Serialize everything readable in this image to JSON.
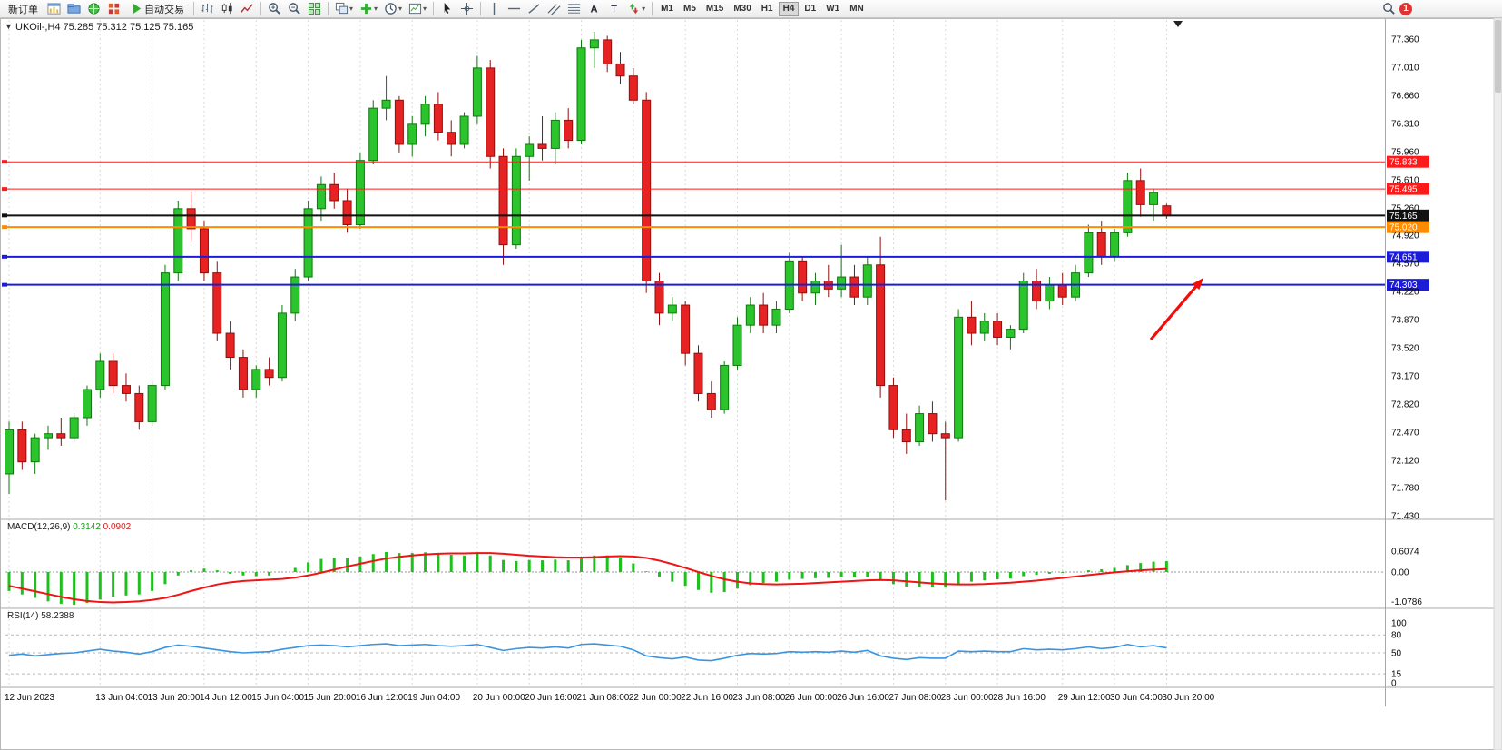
{
  "toolbar": {
    "new_order_label": "新订单",
    "autotrade_label": "自动交易",
    "left_icon_buttons": [
      {
        "name": "new-chart-button",
        "icon": "chart-window"
      },
      {
        "name": "profiles-button",
        "icon": "folder-blue"
      },
      {
        "name": "market-watch-button",
        "icon": "globe-green"
      },
      {
        "name": "terminal-button",
        "icon": "grid-red"
      }
    ],
    "chart_type_buttons": [
      {
        "name": "bar-chart-button",
        "icon": "bars"
      },
      {
        "name": "candlestick-chart-button",
        "icon": "candles"
      },
      {
        "name": "line-chart-button",
        "icon": "linechart"
      }
    ],
    "zoom_buttons": [
      {
        "name": "zoom-in-button",
        "icon": "zoom-in"
      },
      {
        "name": "zoom-out-button",
        "icon": "zoom-out"
      },
      {
        "name": "tile-windows-button",
        "icon": "tiles-green"
      }
    ],
    "window_buttons": [
      {
        "name": "arrange-windows-button",
        "icon": "cascade",
        "caret": true
      },
      {
        "name": "add-indicator-button",
        "icon": "plus-green",
        "caret": true
      },
      {
        "name": "period-menu-button",
        "icon": "clock",
        "caret": true
      },
      {
        "name": "template-button",
        "icon": "template",
        "caret": true
      }
    ],
    "cursor_buttons": [
      {
        "name": "cursor-button",
        "icon": "cursor"
      },
      {
        "name": "crosshair-button",
        "icon": "crosshair"
      }
    ],
    "object_buttons": [
      {
        "name": "vertical-line-button",
        "icon": "vline"
      },
      {
        "name": "horizontal-line-button",
        "icon": "hline"
      },
      {
        "name": "trendline-button",
        "icon": "trend"
      },
      {
        "name": "channel-button",
        "icon": "channel"
      },
      {
        "name": "fibonacci-button",
        "icon": "fibo"
      },
      {
        "name": "text-button",
        "icon": "textA"
      },
      {
        "name": "text-label-button",
        "icon": "textT"
      },
      {
        "name": "arrows-button",
        "icon": "arrows",
        "caret": true
      }
    ],
    "timeframes": [
      "M1",
      "M5",
      "M15",
      "M30",
      "H1",
      "H4",
      "D1",
      "W1",
      "MN"
    ],
    "active_timeframe": "H4",
    "notification_count": "1"
  },
  "chart": {
    "title": "UKOil-,H4 75.285 75.312 75.125 75.165",
    "symbol": "UKOil-",
    "period": "H4",
    "open": "75.285",
    "high": "75.312",
    "low": "75.125",
    "close": "75.165",
    "macd_name": "MACD(12,26,9)",
    "macd_main": "0.3142",
    "macd_signal": "0.0902",
    "rsi_name": "RSI(14)",
    "rsi_value": "58.2388"
  },
  "colors": {
    "bull_fill": "#2cc42c",
    "bull_stroke": "#0d7a0d",
    "bear_fill": "#e62222",
    "bear_stroke": "#8f0f0f",
    "macd_hist": "#1fbf1f",
    "macd_signal": "#f01414",
    "rsi_line": "#3b94e0",
    "grid": "#dadada",
    "axis_text": "#0a0a0a",
    "badge_text": "#ffffff",
    "separator": "#a8a8a8",
    "arrow": "#f20d0d",
    "hline_red": "#fe1a1a",
    "hline_orange": "#ff8c00",
    "hline_blue": "#1b1bd8",
    "hline_black": "#111111"
  },
  "chart_data": [
    {
      "type": "candlestick",
      "symbol": "UKOil-",
      "timeframe": "H4",
      "ylim": [
        71.43,
        77.36
      ],
      "y_ticks": [
        "77.360",
        "77.010",
        "76.660",
        "76.310",
        "75.960",
        "75.610",
        "75.260",
        "74.920",
        "74.570",
        "74.220",
        "73.870",
        "73.520",
        "73.170",
        "72.820",
        "72.470",
        "72.120",
        "71.780",
        "71.430"
      ],
      "x": [
        "12 Jun 00:00",
        "12 Jun 04:00",
        "12 Jun 08:00",
        "12 Jun 12:00",
        "12 Jun 16:00",
        "12 Jun 20:00",
        "13 Jun 00:00",
        "13 Jun 04:00",
        "13 Jun 08:00",
        "13 Jun 12:00",
        "13 Jun 16:00",
        "13 Jun 20:00",
        "14 Jun 00:00",
        "14 Jun 04:00",
        "14 Jun 08:00",
        "14 Jun 12:00",
        "14 Jun 16:00",
        "14 Jun 20:00",
        "15 Jun 00:00",
        "15 Jun 04:00",
        "15 Jun 08:00",
        "15 Jun 12:00",
        "15 Jun 16:00",
        "15 Jun 20:00",
        "16 Jun 00:00",
        "16 Jun 04:00",
        "16 Jun 08:00",
        "16 Jun 12:00",
        "16 Jun 16:00",
        "16 Jun 20:00",
        "19 Jun 00:00",
        "19 Jun 04:00",
        "19 Jun 08:00",
        "19 Jun 12:00",
        "19 Jun 16:00",
        "19 Jun 20:00",
        "20 Jun 00:00",
        "20 Jun 04:00",
        "20 Jun 08:00",
        "20 Jun 12:00",
        "20 Jun 16:00",
        "20 Jun 20:00",
        "21 Jun 00:00",
        "21 Jun 04:00",
        "21 Jun 08:00",
        "21 Jun 12:00",
        "21 Jun 16:00",
        "21 Jun 20:00",
        "22 Jun 00:00",
        "22 Jun 04:00",
        "22 Jun 08:00",
        "22 Jun 12:00",
        "22 Jun 16:00",
        "22 Jun 20:00",
        "23 Jun 00:00",
        "23 Jun 04:00",
        "23 Jun 08:00",
        "23 Jun 12:00",
        "23 Jun 16:00",
        "23 Jun 20:00",
        "26 Jun 00:00",
        "26 Jun 04:00",
        "26 Jun 08:00",
        "26 Jun 12:00",
        "26 Jun 16:00",
        "26 Jun 20:00",
        "27 Jun 00:00",
        "27 Jun 04:00",
        "27 Jun 08:00",
        "27 Jun 12:00",
        "27 Jun 16:00",
        "27 Jun 20:00",
        "28 Jun 00:00",
        "28 Jun 04:00",
        "28 Jun 08:00",
        "28 Jun 12:00",
        "28 Jun 16:00",
        "28 Jun 20:00",
        "29 Jun 00:00",
        "29 Jun 04:00",
        "29 Jun 08:00",
        "29 Jun 12:00",
        "29 Jun 16:00",
        "29 Jun 20:00",
        "30 Jun 00:00",
        "30 Jun 04:00",
        "30 Jun 08:00",
        "30 Jun 12:00",
        "30 Jun 16:00",
        "30 Jun 20:00"
      ],
      "open": [
        71.95,
        72.5,
        72.1,
        72.4,
        72.45,
        72.4,
        72.65,
        73.0,
        73.35,
        73.05,
        72.95,
        72.6,
        73.05,
        74.45,
        75.25,
        75.0,
        74.45,
        73.7,
        73.4,
        73.0,
        73.25,
        73.15,
        73.95,
        74.4,
        75.25,
        75.55,
        75.35,
        75.05,
        75.85,
        76.5,
        76.6,
        76.05,
        76.3,
        76.55,
        76.2,
        76.05,
        76.4,
        77.0,
        75.9,
        74.8,
        75.9,
        76.05,
        76.0,
        76.35,
        76.1,
        77.25,
        77.35,
        77.05,
        76.9,
        76.6,
        74.35,
        73.95,
        74.05,
        73.45,
        72.95,
        72.75,
        73.3,
        73.8,
        74.05,
        73.8,
        74.0,
        74.6,
        74.2,
        74.35,
        74.25,
        74.4,
        74.15,
        74.55,
        73.05,
        72.5,
        72.35,
        72.7,
        72.45,
        72.4,
        73.9,
        73.7,
        73.85,
        73.65,
        73.75,
        74.35,
        74.1,
        74.3,
        74.15,
        74.45,
        74.95,
        74.65,
        74.95,
        75.6,
        75.3,
        75.285
      ],
      "high": [
        72.6,
        72.6,
        72.45,
        72.55,
        72.65,
        72.7,
        73.05,
        73.45,
        73.45,
        73.2,
        73.05,
        73.1,
        74.55,
        75.35,
        75.45,
        75.1,
        74.6,
        73.85,
        73.5,
        73.3,
        73.4,
        74.05,
        74.5,
        75.35,
        75.65,
        75.7,
        75.5,
        75.95,
        76.6,
        76.9,
        76.65,
        76.4,
        76.65,
        76.7,
        76.35,
        76.45,
        77.15,
        77.1,
        76.0,
        76.0,
        76.15,
        76.4,
        76.45,
        76.5,
        77.35,
        77.45,
        77.4,
        77.2,
        77.0,
        76.7,
        74.45,
        74.15,
        74.1,
        73.55,
        73.1,
        73.35,
        73.9,
        74.15,
        74.2,
        74.1,
        74.7,
        74.65,
        74.45,
        74.55,
        74.8,
        74.55,
        74.65,
        74.9,
        73.15,
        72.7,
        72.8,
        72.85,
        72.6,
        74.0,
        74.1,
        73.95,
        73.95,
        73.8,
        74.45,
        74.5,
        74.4,
        74.45,
        74.55,
        75.05,
        75.1,
        75.0,
        75.7,
        75.75,
        75.5,
        75.312
      ],
      "low": [
        71.7,
        72.0,
        71.95,
        72.25,
        72.3,
        72.35,
        72.55,
        72.9,
        72.95,
        72.85,
        72.5,
        72.55,
        73.0,
        74.35,
        74.85,
        74.35,
        73.6,
        73.25,
        72.9,
        72.9,
        73.05,
        73.1,
        73.85,
        74.35,
        75.1,
        75.25,
        74.95,
        75.0,
        75.8,
        76.35,
        75.95,
        75.9,
        76.15,
        76.1,
        75.9,
        76.0,
        76.3,
        75.75,
        74.55,
        74.75,
        75.6,
        75.85,
        75.8,
        76.0,
        76.05,
        77.0,
        76.95,
        76.8,
        76.55,
        74.2,
        73.8,
        73.85,
        73.3,
        72.85,
        72.65,
        72.7,
        73.25,
        73.7,
        73.7,
        73.7,
        73.95,
        74.1,
        74.05,
        74.15,
        74.15,
        74.05,
        74.05,
        72.9,
        72.4,
        72.2,
        72.3,
        72.35,
        71.62,
        72.35,
        73.55,
        73.6,
        73.55,
        73.5,
        73.7,
        74.0,
        74.0,
        74.05,
        74.1,
        74.4,
        74.55,
        74.6,
        74.9,
        75.15,
        75.1,
        75.125
      ],
      "close": [
        72.5,
        72.1,
        72.4,
        72.45,
        72.4,
        72.65,
        73.0,
        73.35,
        73.05,
        72.95,
        72.6,
        73.05,
        74.45,
        75.25,
        75.0,
        74.45,
        73.7,
        73.4,
        73.0,
        73.25,
        73.15,
        73.95,
        74.4,
        75.25,
        75.55,
        75.35,
        75.05,
        75.85,
        76.5,
        76.6,
        76.05,
        76.3,
        76.55,
        76.2,
        76.05,
        76.4,
        77.0,
        75.9,
        74.8,
        75.9,
        76.05,
        76.0,
        76.35,
        76.1,
        77.25,
        77.35,
        77.05,
        76.9,
        76.6,
        74.35,
        73.95,
        74.05,
        73.45,
        72.95,
        72.75,
        73.3,
        73.8,
        74.05,
        73.8,
        74.0,
        74.6,
        74.2,
        74.35,
        74.25,
        74.4,
        74.15,
        74.55,
        73.05,
        72.5,
        72.35,
        72.7,
        72.45,
        72.4,
        73.9,
        73.7,
        73.85,
        73.65,
        73.75,
        74.35,
        74.1,
        74.3,
        74.15,
        74.45,
        74.95,
        74.65,
        74.95,
        75.6,
        75.3,
        75.45,
        75.165
      ],
      "x_tick_labels": [
        [
          0,
          "12 Jun 2023"
        ],
        [
          7,
          "13 Jun 04:00"
        ],
        [
          11,
          "13 Jun 20:00"
        ],
        [
          15,
          "14 Jun 12:00"
        ],
        [
          19,
          "15 Jun 04:00"
        ],
        [
          23,
          "15 Jun 20:00"
        ],
        [
          27,
          "16 Jun 12:00"
        ],
        [
          31,
          "19 Jun 04:00"
        ],
        [
          36,
          "20 Jun 00:00"
        ],
        [
          40,
          "20 Jun 16:00"
        ],
        [
          44,
          "21 Jun 08:00"
        ],
        [
          48,
          "22 Jun 00:00"
        ],
        [
          52,
          "22 Jun 16:00"
        ],
        [
          56,
          "23 Jun 08:00"
        ],
        [
          60,
          "26 Jun 00:00"
        ],
        [
          64,
          "26 Jun 16:00"
        ],
        [
          68,
          "27 Jun 08:00"
        ],
        [
          72,
          "28 Jun 00:00"
        ],
        [
          76,
          "28 Jun 16:00"
        ],
        [
          81,
          "29 Jun 12:00"
        ],
        [
          85,
          "30 Jun 04:00"
        ],
        [
          89,
          "30 Jun 20:00"
        ]
      ],
      "hlines": [
        {
          "price": 75.833,
          "label": "75.833",
          "color": "#fe1a1a",
          "width": 1
        },
        {
          "price": 75.495,
          "label": "75.495",
          "color": "#fe1a1a",
          "width": 1
        },
        {
          "price": 75.165,
          "label": "75.165",
          "color": "#111111",
          "width": 2
        },
        {
          "price": 75.02,
          "label": "75.020",
          "color": "#ff8c00",
          "width": 2
        },
        {
          "price": 74.651,
          "label": "74.651",
          "color": "#1b1bd8",
          "width": 2
        },
        {
          "price": 74.303,
          "label": "74.303",
          "color": "#1b1bd8",
          "width": 2
        }
      ],
      "annotations": [
        {
          "type": "arrow",
          "from": [
            1268,
            374
          ],
          "to": [
            1326,
            306
          ],
          "color": "#f20d0d"
        }
      ]
    },
    {
      "type": "bar",
      "name": "MACD(12,26,9)",
      "main": 0.3142,
      "signal_value": 0.0902,
      "axis_ticks": [
        "0.6074",
        "0.00",
        "-1.0786"
      ],
      "histogram": [
        -0.55,
        -0.65,
        -0.75,
        -0.85,
        -0.92,
        -0.95,
        -0.9,
        -0.8,
        -0.72,
        -0.68,
        -0.65,
        -0.55,
        -0.35,
        -0.1,
        0.05,
        0.1,
        0.05,
        -0.05,
        -0.1,
        -0.12,
        -0.1,
        0.0,
        0.12,
        0.28,
        0.38,
        0.42,
        0.4,
        0.45,
        0.52,
        0.58,
        0.55,
        0.55,
        0.57,
        0.55,
        0.5,
        0.48,
        0.55,
        0.48,
        0.35,
        0.32,
        0.35,
        0.34,
        0.36,
        0.34,
        0.42,
        0.48,
        0.48,
        0.42,
        0.25,
        0.02,
        -0.15,
        -0.28,
        -0.4,
        -0.52,
        -0.6,
        -0.58,
        -0.48,
        -0.38,
        -0.32,
        -0.28,
        -0.22,
        -0.2,
        -0.18,
        -0.17,
        -0.15,
        -0.16,
        -0.15,
        -0.25,
        -0.35,
        -0.42,
        -0.44,
        -0.44,
        -0.45,
        -0.35,
        -0.28,
        -0.24,
        -0.21,
        -0.19,
        -0.12,
        -0.08,
        -0.05,
        -0.03,
        0.0,
        0.05,
        0.08,
        0.12,
        0.2,
        0.26,
        0.3,
        0.3142
      ],
      "signal": [
        -0.4,
        -0.48,
        -0.56,
        -0.64,
        -0.72,
        -0.79,
        -0.84,
        -0.87,
        -0.88,
        -0.87,
        -0.85,
        -0.81,
        -0.75,
        -0.66,
        -0.55,
        -0.45,
        -0.36,
        -0.3,
        -0.26,
        -0.24,
        -0.22,
        -0.2,
        -0.16,
        -0.1,
        -0.02,
        0.07,
        0.16,
        0.24,
        0.32,
        0.39,
        0.44,
        0.48,
        0.51,
        0.53,
        0.54,
        0.54,
        0.55,
        0.55,
        0.53,
        0.5,
        0.47,
        0.45,
        0.43,
        0.42,
        0.42,
        0.43,
        0.45,
        0.46,
        0.45,
        0.41,
        0.33,
        0.23,
        0.12,
        0.0,
        -0.11,
        -0.21,
        -0.28,
        -0.33,
        -0.35,
        -0.36,
        -0.35,
        -0.34,
        -0.32,
        -0.3,
        -0.28,
        -0.26,
        -0.24,
        -0.23,
        -0.24,
        -0.27,
        -0.3,
        -0.33,
        -0.35,
        -0.36,
        -0.36,
        -0.35,
        -0.33,
        -0.31,
        -0.28,
        -0.25,
        -0.21,
        -0.17,
        -0.13,
        -0.09,
        -0.05,
        -0.01,
        0.02,
        0.05,
        0.07,
        0.0902
      ]
    },
    {
      "type": "line",
      "name": "RSI(14)",
      "value": 58.2388,
      "ylim": [
        0,
        100
      ],
      "levels": [
        80,
        50,
        15
      ],
      "axis_ticks": [
        "100",
        "80",
        "50",
        "15",
        "0"
      ],
      "values": [
        46,
        48,
        45,
        47,
        49,
        50,
        53,
        56,
        53,
        51,
        48,
        52,
        59,
        63,
        61,
        58,
        55,
        52,
        50,
        51,
        52,
        56,
        59,
        62,
        63,
        62,
        60,
        62,
        64,
        65,
        62,
        63,
        64,
        62,
        61,
        62,
        64,
        59,
        54,
        57,
        59,
        58,
        60,
        58,
        64,
        65,
        63,
        61,
        55,
        45,
        42,
        40,
        43,
        38,
        37,
        41,
        46,
        49,
        48,
        49,
        52,
        51,
        52,
        51,
        53,
        51,
        54,
        45,
        41,
        39,
        42,
        41,
        41,
        53,
        52,
        53,
        52,
        52,
        57,
        55,
        56,
        55,
        57,
        60,
        57,
        59,
        64,
        60,
        62,
        58.2388
      ]
    }
  ]
}
